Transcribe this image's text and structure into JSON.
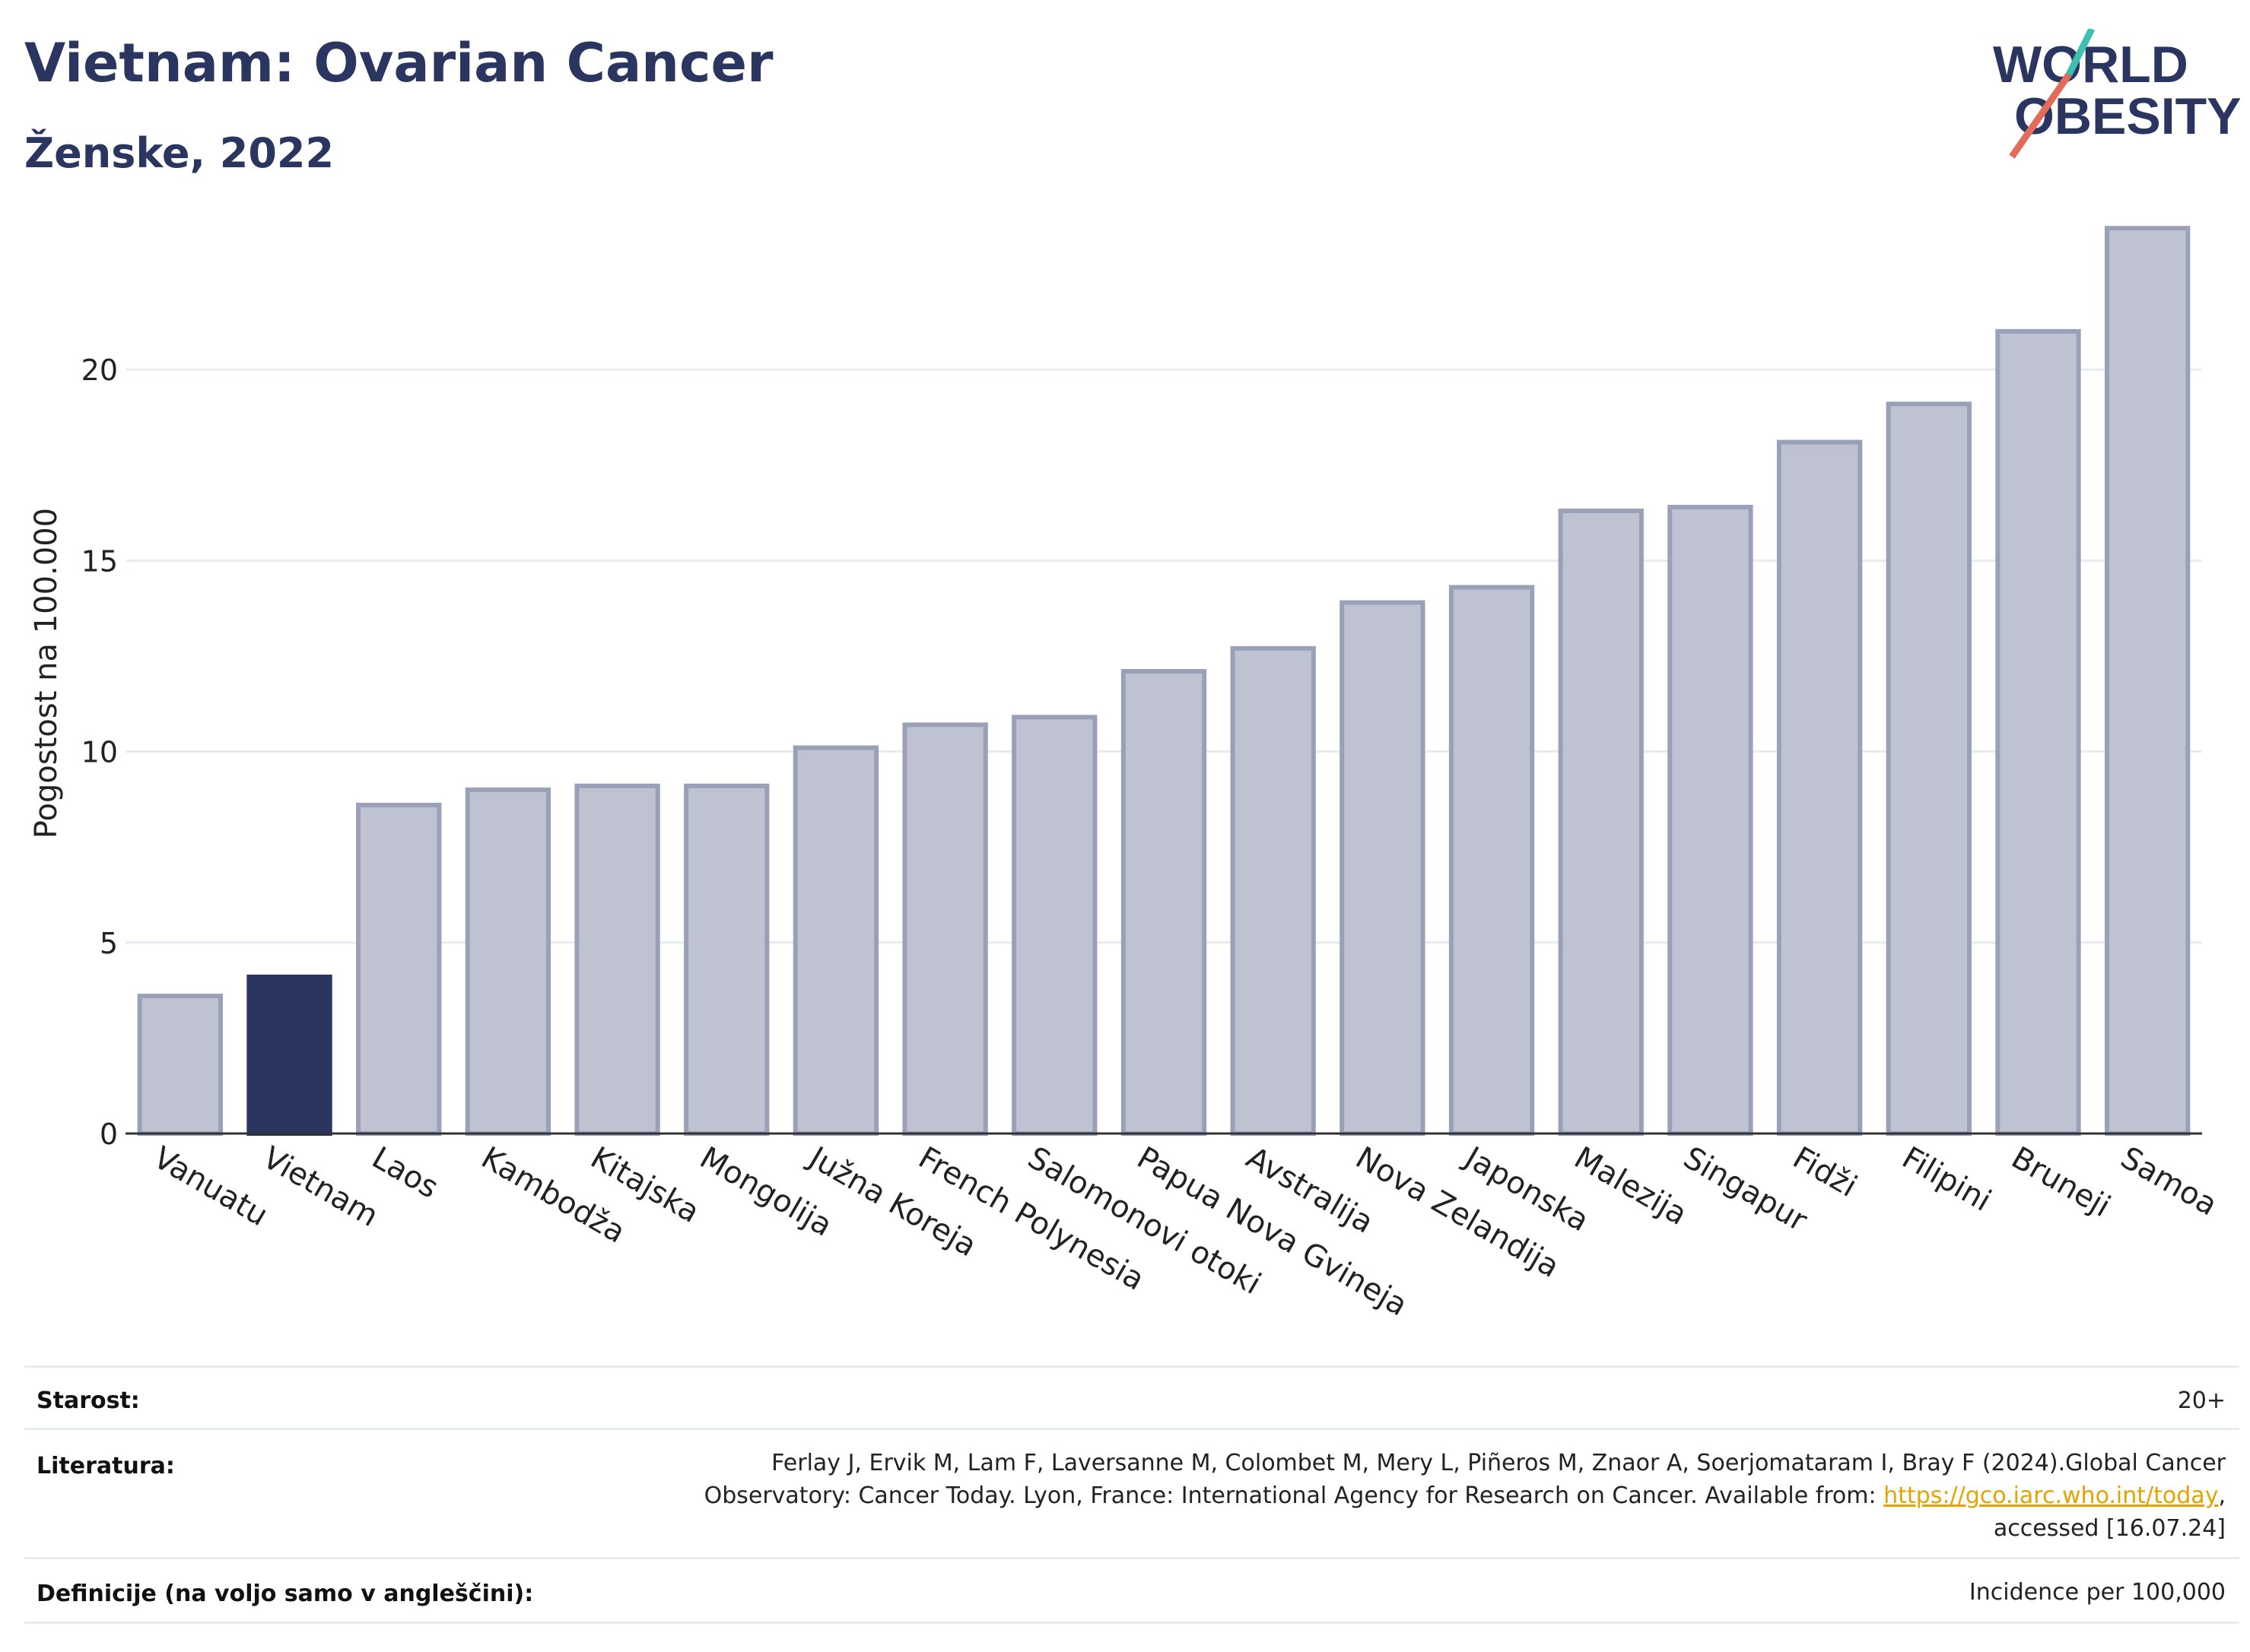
{
  "header": {
    "title": "Vietnam: Ovarian Cancer",
    "subtitle": "Ženske, 2022"
  },
  "logo": {
    "line1": "WORLD",
    "line2": "OBESITY"
  },
  "chart_data": {
    "type": "bar",
    "ylabel": "Pogostost na 100.000",
    "ylim": [
      0,
      24.5
    ],
    "yticks": [
      0,
      5,
      10,
      15,
      20
    ],
    "grid": true,
    "highlight": "Vietnam",
    "colors": {
      "bar": "#bfc3d1",
      "bar_edge": "#9aa0b8",
      "highlight": "#2a3560"
    },
    "categories": [
      "Vanuatu",
      "Vietnam",
      "Laos",
      "Kambodža",
      "Kitajska",
      "Mongolija",
      "Južna Koreja",
      "French Polynesia",
      "Salomonovi otoki",
      "Papua Nova Gvineja",
      "Avstralija",
      "Nova Zelandija",
      "Japonska",
      "Malezija",
      "Singapur",
      "Fidži",
      "Filipini",
      "Bruneji",
      "Samoa"
    ],
    "values": [
      3.6,
      4.1,
      8.6,
      9.0,
      9.1,
      9.1,
      10.1,
      10.7,
      10.9,
      12.1,
      12.7,
      13.9,
      14.3,
      16.3,
      16.4,
      18.1,
      19.1,
      21.0,
      23.7
    ]
  },
  "info": {
    "age_label": "Starost:",
    "age_value": "20+",
    "ref_label": "Literatura:",
    "ref_line1": "Ferlay J, Ervik M, Lam F, Laversanne M, Colombet M, Mery L, Piñeros M, Znaor A, Soerjomataram I, Bray F (2024).Global Cancer",
    "ref_line2_pre": "Observatory: Cancer Today. Lyon, France: International Agency for Research on Cancer. Available from: ",
    "ref_link": "https://gco.iarc.who.int/today",
    "ref_line2_post": ",",
    "ref_line3": "accessed [16.07.24]",
    "def_label": "Definicije (na voljo samo v angleščini):",
    "def_value": "Incidence per 100,000"
  }
}
